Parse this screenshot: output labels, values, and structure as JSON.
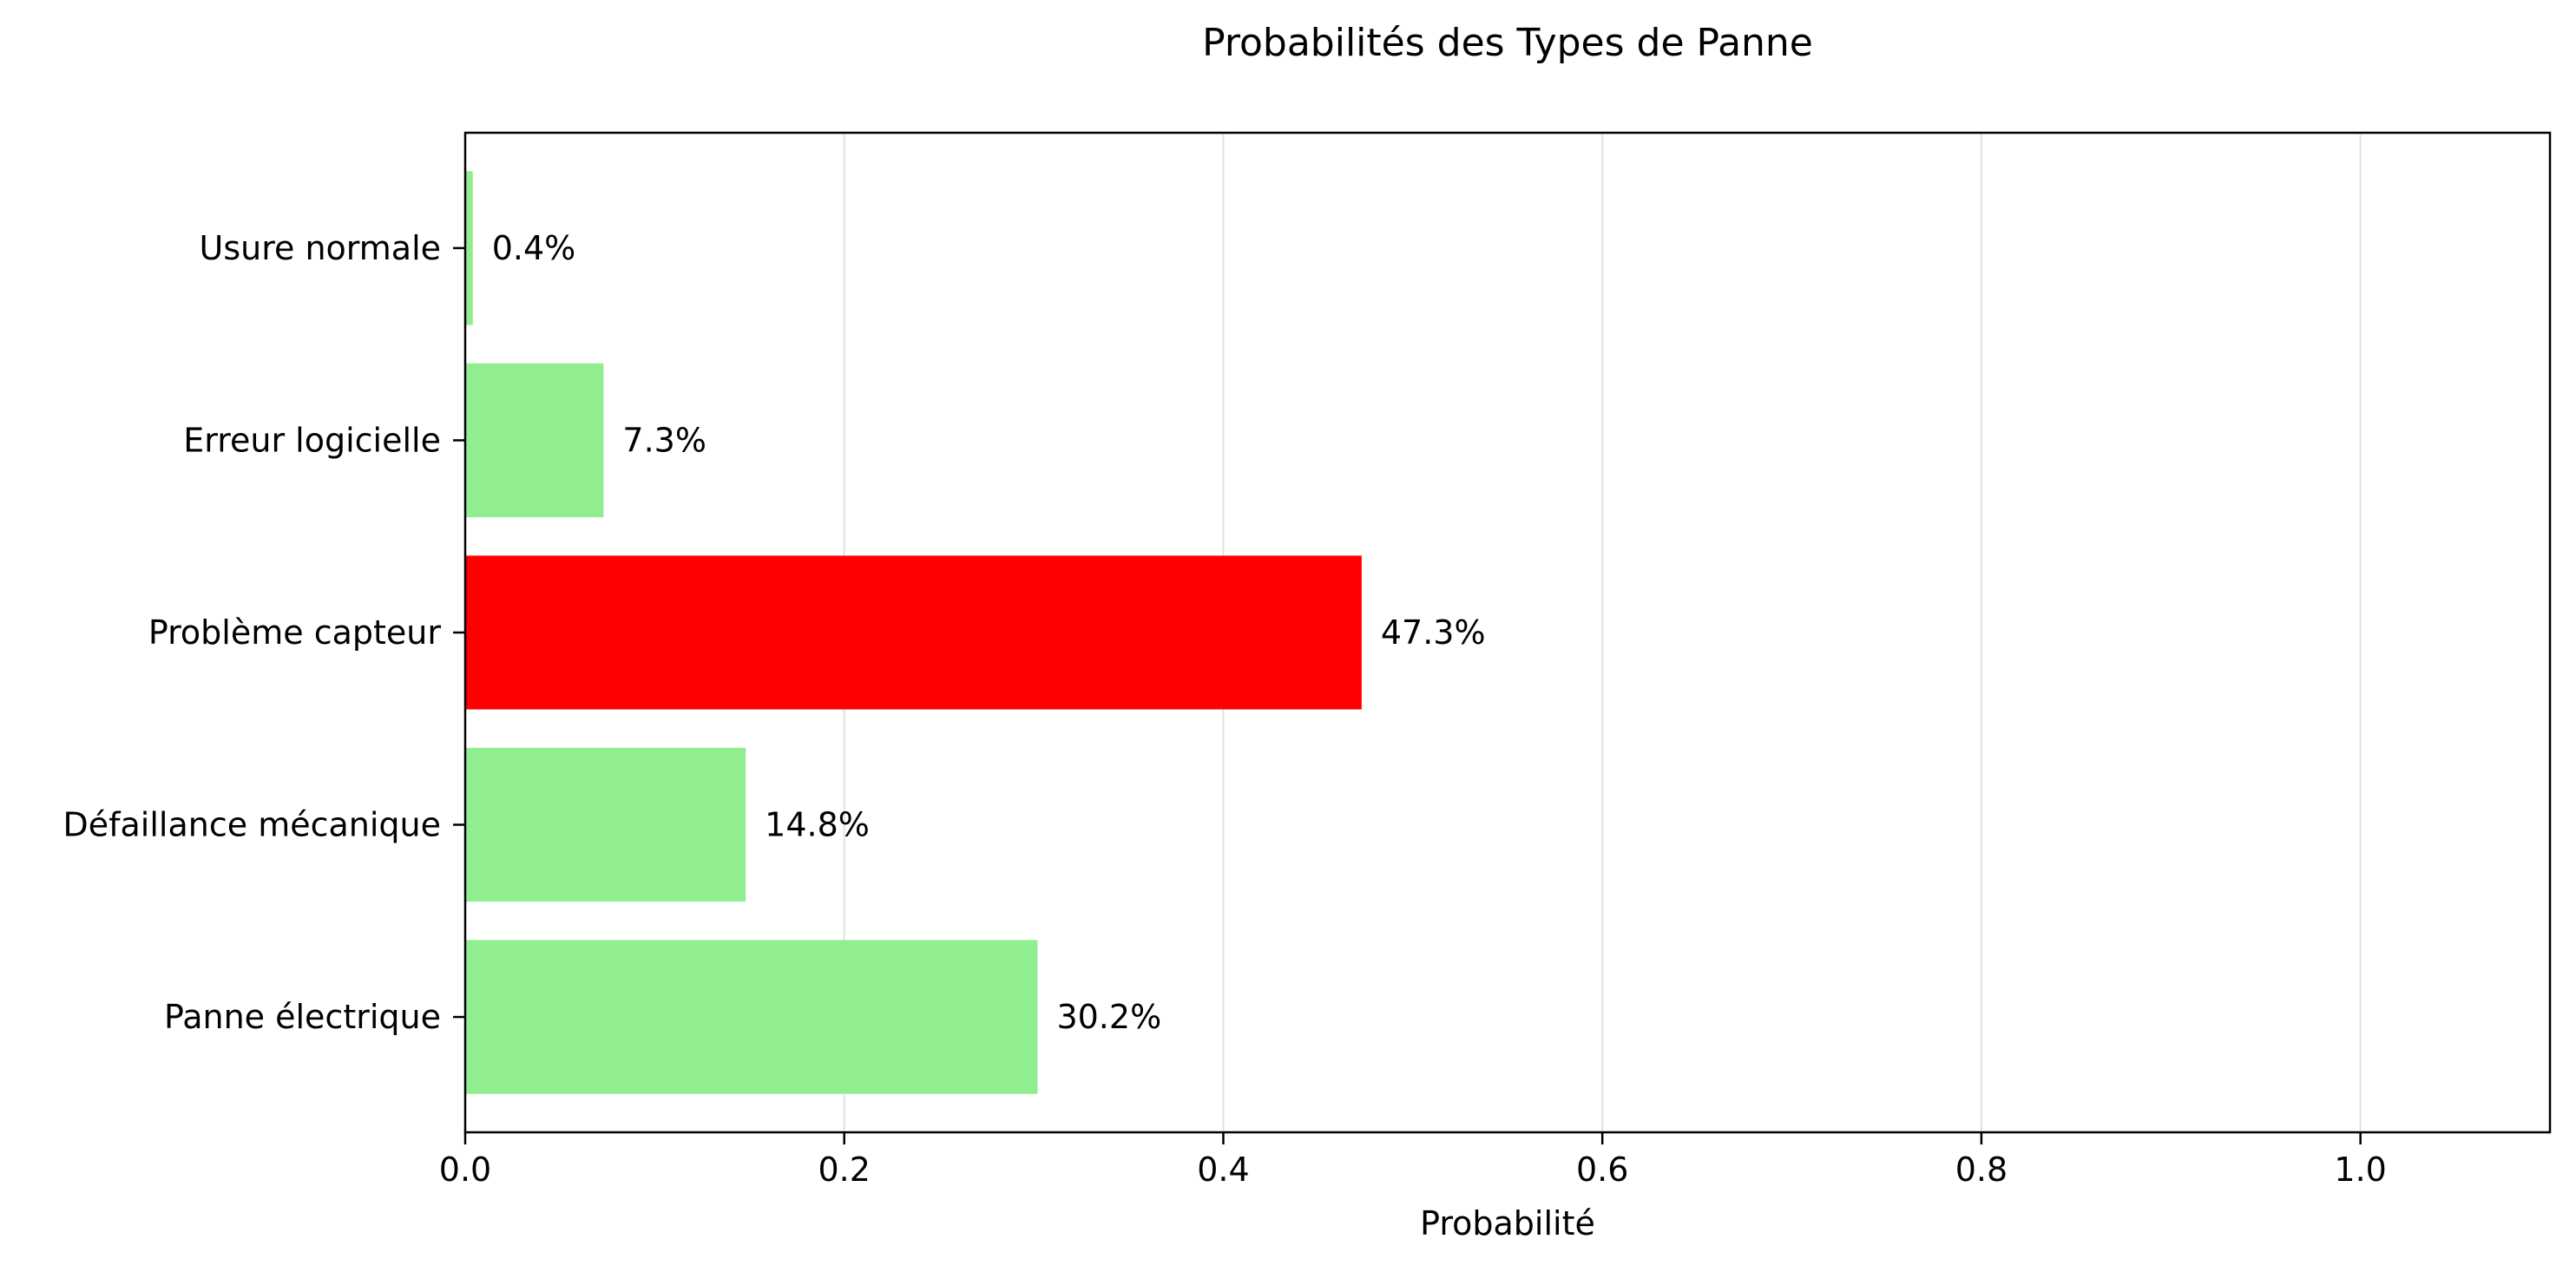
{
  "chart_data": {
    "type": "bar",
    "orientation": "horizontal",
    "title": "Probabilités des Types de Panne",
    "xlabel": "Probabilité",
    "ylabel": "",
    "xlim": [
      0,
      1.1
    ],
    "xticks": [
      "0.0",
      "0.2",
      "0.4",
      "0.6",
      "0.8",
      "1.0"
    ],
    "xtick_values": [
      0.0,
      0.2,
      0.4,
      0.6,
      0.8,
      1.0
    ],
    "grid": "vertical lines only",
    "legend": "none",
    "categories": [
      "Panne électrique",
      "Défaillance mécanique",
      "Problème capteur",
      "Erreur logicielle",
      "Usure normale"
    ],
    "values": [
      0.302,
      0.148,
      0.473,
      0.073,
      0.004
    ],
    "data_labels": [
      "30.2%",
      "14.8%",
      "47.3%",
      "7.3%",
      "0.4%"
    ],
    "bar_colors": [
      "#90ee90",
      "#90ee90",
      "#ff0000",
      "#90ee90",
      "#90ee90"
    ]
  }
}
